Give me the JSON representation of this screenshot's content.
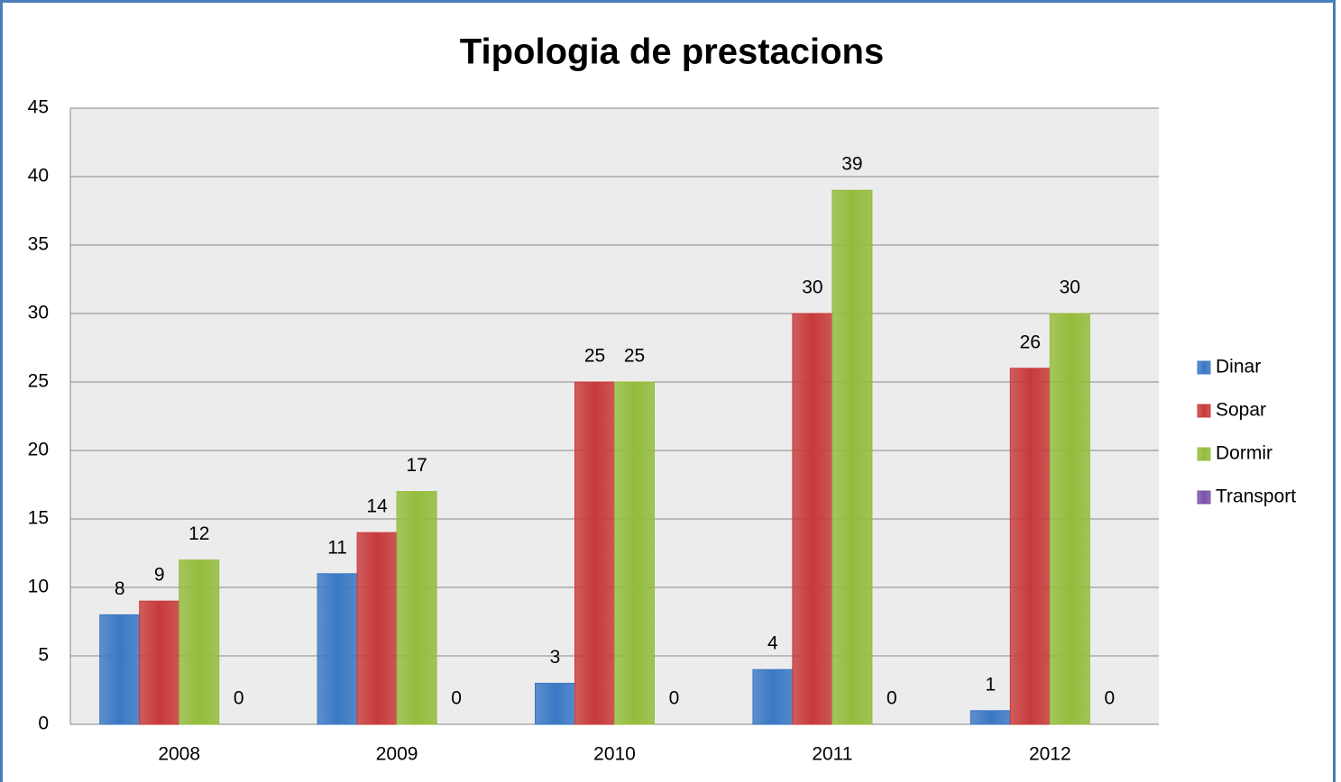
{
  "chart_data": {
    "type": "bar",
    "title": "Tipologia de prestacions",
    "categories": [
      "2008",
      "2009",
      "2010",
      "2011",
      "2012"
    ],
    "series": [
      {
        "name": "Dinar",
        "color": "#3a78c4",
        "values": [
          8,
          11,
          3,
          4,
          1
        ]
      },
      {
        "name": "Sopar",
        "color": "#c83a3a",
        "values": [
          9,
          14,
          25,
          30,
          26
        ]
      },
      {
        "name": "Dormir",
        "color": "#94bc3c",
        "values": [
          12,
          17,
          25,
          39,
          30
        ]
      },
      {
        "name": "Transport",
        "color": "#7a52a8",
        "values": [
          0,
          0,
          0,
          0,
          0
        ]
      }
    ],
    "ylim": [
      0,
      45
    ],
    "yticks": [
      0,
      5,
      10,
      15,
      20,
      25,
      30,
      35,
      40,
      45
    ],
    "grid": true,
    "legend": "right"
  }
}
